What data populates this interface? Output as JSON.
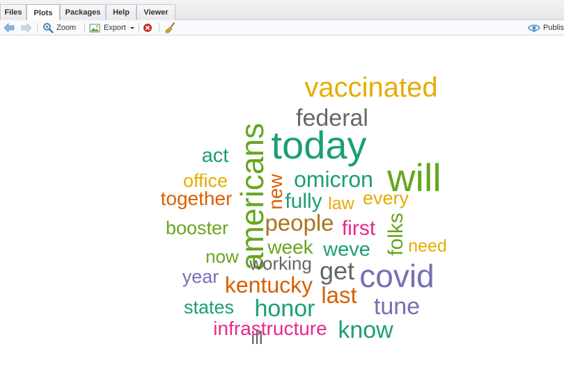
{
  "tabs": [
    {
      "label": "Files"
    },
    {
      "label": "Plots"
    },
    {
      "label": "Packages"
    },
    {
      "label": "Help"
    },
    {
      "label": "Viewer"
    }
  ],
  "active_tab": "Plots",
  "toolbar": {
    "zoom_label": "Zoom",
    "export_label": "Export",
    "publish_label": "Publish"
  },
  "colors": {
    "teal": "#1b9e77",
    "orange": "#d95f02",
    "purple": "#7570b3",
    "magenta": "#e7298a",
    "green": "#66a61e",
    "gold": "#e6ab02",
    "brown": "#a6761d",
    "gray": "#666666"
  },
  "wordcloud": {
    "words": [
      {
        "text": "vaccinated",
        "color": "gold"
      },
      {
        "text": "federal",
        "color": "gray"
      },
      {
        "text": "today",
        "color": "teal"
      },
      {
        "text": "americans",
        "color": "green"
      },
      {
        "text": "act",
        "color": "teal"
      },
      {
        "text": "will",
        "color": "green"
      },
      {
        "text": "office",
        "color": "gold"
      },
      {
        "text": "omicron",
        "color": "teal"
      },
      {
        "text": "new",
        "color": "orange"
      },
      {
        "text": "together",
        "color": "orange"
      },
      {
        "text": "fully",
        "color": "teal"
      },
      {
        "text": "law",
        "color": "gold"
      },
      {
        "text": "every",
        "color": "gold"
      },
      {
        "text": "booster",
        "color": "green"
      },
      {
        "text": "people",
        "color": "brown"
      },
      {
        "text": "first",
        "color": "magenta"
      },
      {
        "text": "folks",
        "color": "green"
      },
      {
        "text": "need",
        "color": "gold"
      },
      {
        "text": "now",
        "color": "green"
      },
      {
        "text": "week",
        "color": "green"
      },
      {
        "text": "weve",
        "color": "teal"
      },
      {
        "text": "working",
        "color": "gray"
      },
      {
        "text": "year",
        "color": "purple"
      },
      {
        "text": "get",
        "color": "gray"
      },
      {
        "text": "covid",
        "color": "purple"
      },
      {
        "text": "kentucky",
        "color": "orange"
      },
      {
        "text": "last",
        "color": "orange"
      },
      {
        "text": "states",
        "color": "teal"
      },
      {
        "text": "honor",
        "color": "teal"
      },
      {
        "text": "tune",
        "color": "purple"
      },
      {
        "text": "infrastructure",
        "color": "magenta"
      },
      {
        "text": "know",
        "color": "teal"
      },
      {
        "text": "ill",
        "color": "gray"
      }
    ]
  }
}
